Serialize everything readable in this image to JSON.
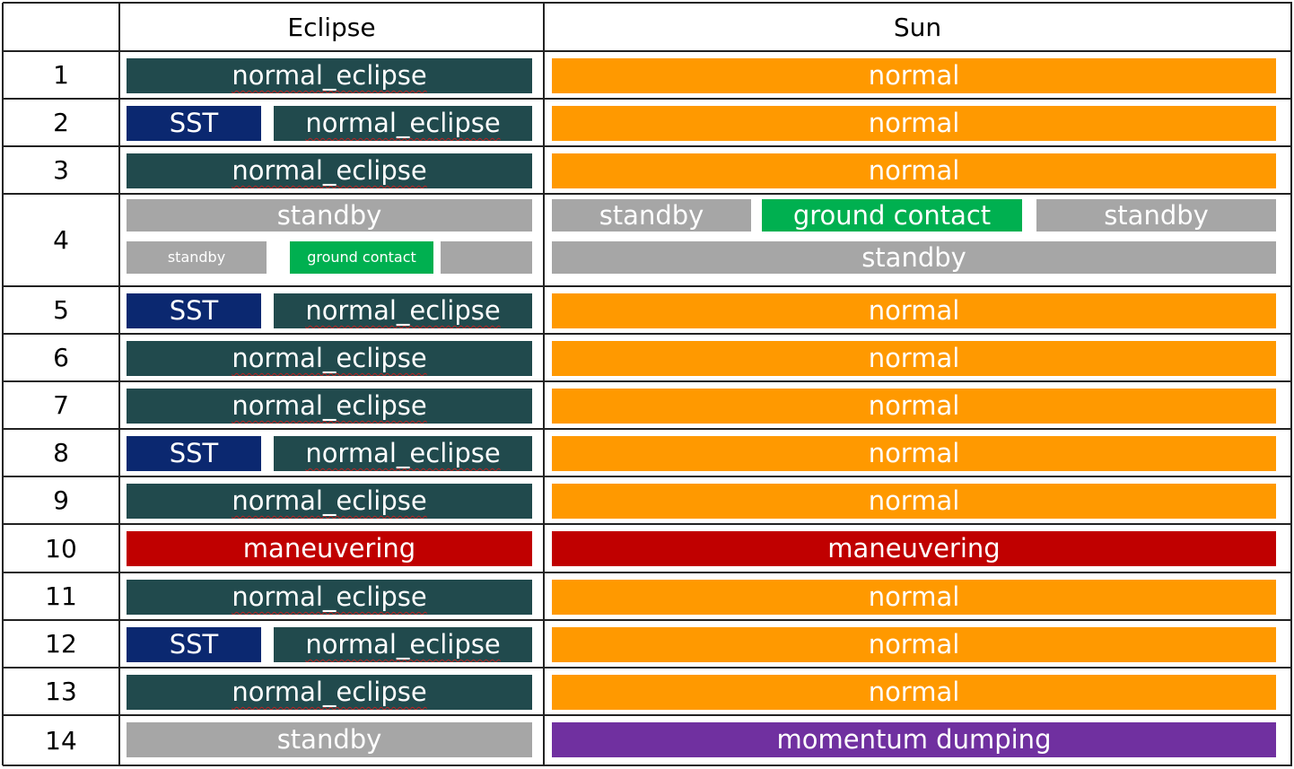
{
  "header": {
    "col_eclipse": "Eclipse",
    "col_sun": "Sun"
  },
  "colors": {
    "normal_eclipse": "#214a4d",
    "sst": "#0b2870",
    "normal": "#ff9900",
    "standby": "#a6a6a6",
    "ground_contact": "#00b050",
    "maneuvering": "#c00000",
    "momentum_dumping": "#7030a0"
  },
  "rows": [
    {
      "num": "1",
      "eclipse": [
        [
          {
            "label": "normal_eclipse",
            "kind": "normal_eclipse"
          }
        ]
      ],
      "sun": [
        [
          {
            "label": "normal",
            "kind": "normal"
          }
        ]
      ]
    },
    {
      "num": "2",
      "eclipse": [
        [
          {
            "label": "SST",
            "kind": "sst"
          },
          {
            "label": "normal_eclipse",
            "kind": "normal_eclipse"
          }
        ]
      ],
      "sun": [
        [
          {
            "label": "normal",
            "kind": "normal"
          }
        ]
      ]
    },
    {
      "num": "3",
      "eclipse": [
        [
          {
            "label": "normal_eclipse",
            "kind": "normal_eclipse"
          }
        ]
      ],
      "sun": [
        [
          {
            "label": "normal",
            "kind": "normal"
          }
        ]
      ]
    },
    {
      "num": "4",
      "eclipse": [
        [
          {
            "label": "standby",
            "kind": "standby"
          }
        ],
        [
          {
            "label": "standby",
            "kind": "standby",
            "small": true
          },
          {
            "label": "ground contact",
            "kind": "ground_contact",
            "small": true
          },
          {
            "label": "",
            "kind": "standby",
            "small": true
          }
        ]
      ],
      "sun": [
        [
          {
            "label": "standby",
            "kind": "standby"
          },
          {
            "label": "ground contact",
            "kind": "ground_contact"
          },
          {
            "label": "standby",
            "kind": "standby"
          }
        ],
        [
          {
            "label": "standby",
            "kind": "standby"
          }
        ]
      ]
    },
    {
      "num": "5",
      "eclipse": [
        [
          {
            "label": "SST",
            "kind": "sst"
          },
          {
            "label": "normal_eclipse",
            "kind": "normal_eclipse"
          }
        ]
      ],
      "sun": [
        [
          {
            "label": "normal",
            "kind": "normal"
          }
        ]
      ]
    },
    {
      "num": "6",
      "eclipse": [
        [
          {
            "label": "normal_eclipse",
            "kind": "normal_eclipse"
          }
        ]
      ],
      "sun": [
        [
          {
            "label": "normal",
            "kind": "normal"
          }
        ]
      ]
    },
    {
      "num": "7",
      "eclipse": [
        [
          {
            "label": "normal_eclipse",
            "kind": "normal_eclipse"
          }
        ]
      ],
      "sun": [
        [
          {
            "label": "normal",
            "kind": "normal"
          }
        ]
      ]
    },
    {
      "num": "8",
      "eclipse": [
        [
          {
            "label": "SST",
            "kind": "sst"
          },
          {
            "label": "normal_eclipse",
            "kind": "normal_eclipse"
          }
        ]
      ],
      "sun": [
        [
          {
            "label": "normal",
            "kind": "normal"
          }
        ]
      ]
    },
    {
      "num": "9",
      "eclipse": [
        [
          {
            "label": "normal_eclipse",
            "kind": "normal_eclipse"
          }
        ]
      ],
      "sun": [
        [
          {
            "label": "normal",
            "kind": "normal"
          }
        ]
      ]
    },
    {
      "num": "10",
      "eclipse": [
        [
          {
            "label": "maneuvering",
            "kind": "maneuvering"
          }
        ]
      ],
      "sun": [
        [
          {
            "label": "maneuvering",
            "kind": "maneuvering"
          }
        ]
      ]
    },
    {
      "num": "11",
      "eclipse": [
        [
          {
            "label": "normal_eclipse",
            "kind": "normal_eclipse"
          }
        ]
      ],
      "sun": [
        [
          {
            "label": "normal",
            "kind": "normal"
          }
        ]
      ]
    },
    {
      "num": "12",
      "eclipse": [
        [
          {
            "label": "SST",
            "kind": "sst"
          },
          {
            "label": "normal_eclipse",
            "kind": "normal_eclipse"
          }
        ]
      ],
      "sun": [
        [
          {
            "label": "normal",
            "kind": "normal"
          }
        ]
      ]
    },
    {
      "num": "13",
      "eclipse": [
        [
          {
            "label": "normal_eclipse",
            "kind": "normal_eclipse"
          }
        ]
      ],
      "sun": [
        [
          {
            "label": "normal",
            "kind": "normal"
          }
        ]
      ]
    },
    {
      "num": "14",
      "eclipse": [
        [
          {
            "label": "standby",
            "kind": "standby"
          }
        ]
      ],
      "sun": [
        [
          {
            "label": "momentum dumping",
            "kind": "momentum_dumping"
          }
        ]
      ]
    }
  ]
}
